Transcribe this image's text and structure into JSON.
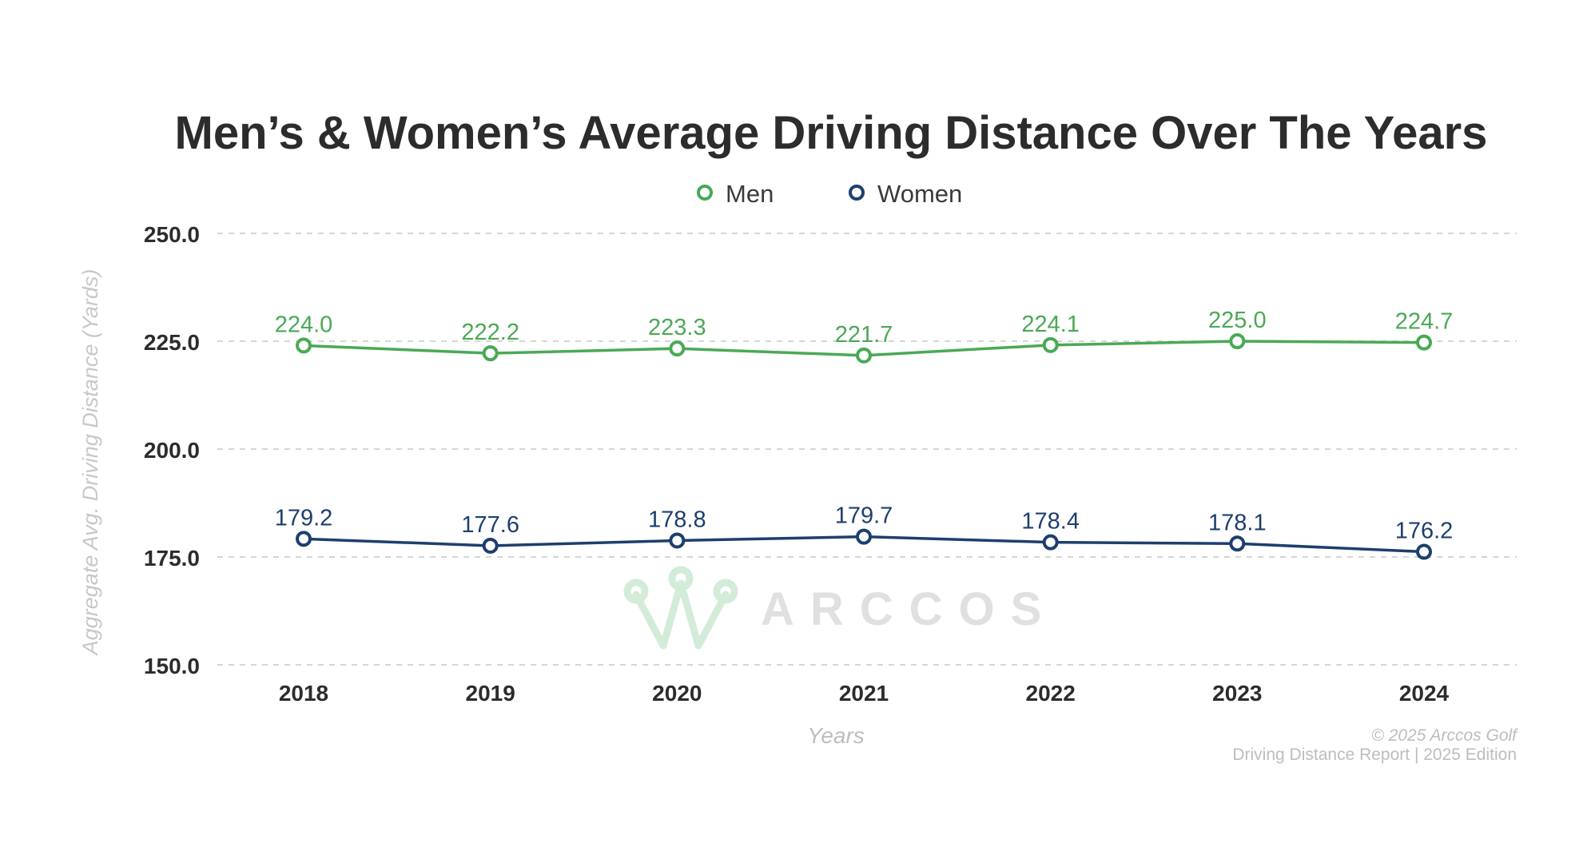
{
  "chart_data": {
    "type": "line",
    "title": "Men’s & Women’s Average Driving Distance Over The Years",
    "xlabel": "Years",
    "ylabel": "Aggregate Avg. Driving Distance (Yards)",
    "categories": [
      "2018",
      "2019",
      "2020",
      "2021",
      "2022",
      "2023",
      "2024"
    ],
    "ylim": [
      150,
      250
    ],
    "yticks": [
      "150.0",
      "175.0",
      "200.0",
      "225.0",
      "250.0"
    ],
    "yticks_values": [
      150,
      175,
      200,
      225,
      250
    ],
    "grid": true,
    "legend_position": "top-center",
    "series": [
      {
        "name": "Men",
        "color": "#4aa956",
        "values": [
          224.0,
          222.2,
          223.3,
          221.7,
          224.1,
          225.0,
          224.7
        ],
        "labels": [
          "224.0",
          "222.2",
          "223.3",
          "221.7",
          "224.1",
          "225.0",
          "224.7"
        ]
      },
      {
        "name": "Women",
        "color": "#1d3f6e",
        "values": [
          179.2,
          177.6,
          178.8,
          179.7,
          178.4,
          178.1,
          176.2
        ],
        "labels": [
          "179.2",
          "177.6",
          "178.8",
          "179.7",
          "178.4",
          "178.1",
          "176.2"
        ]
      }
    ]
  },
  "watermark": {
    "text": "ARCCOS",
    "icon": "arccos-crown-logo"
  },
  "footer": {
    "copyright": "© 2025 Arccos Golf",
    "report": "Driving Distance Report | 2025 Edition"
  }
}
